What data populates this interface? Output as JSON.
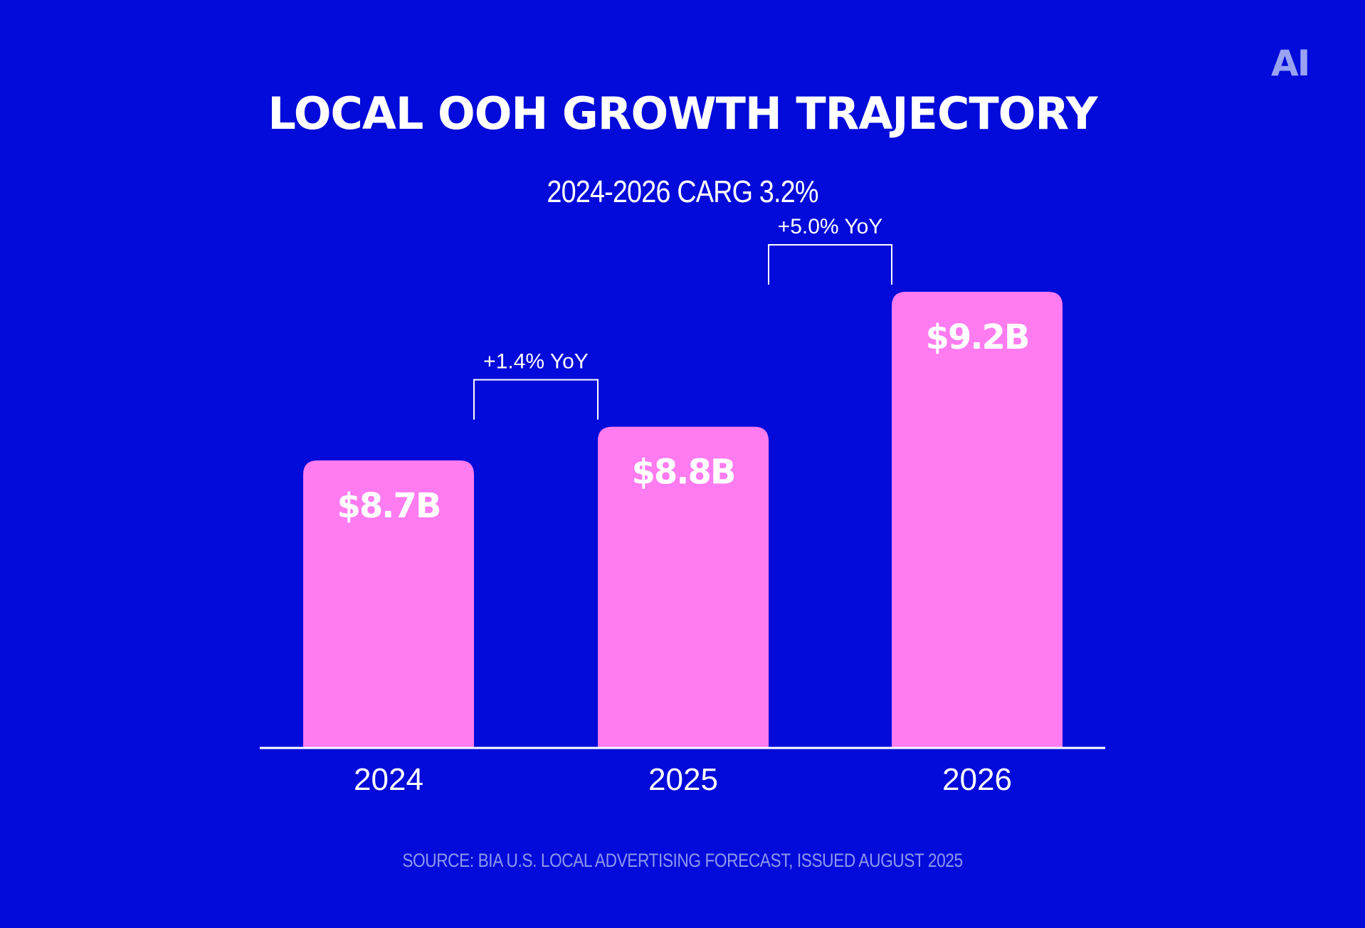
{
  "logo_text": "AI",
  "title": "LOCAL OOH GROWTH TRAJECTORY",
  "subtitle": "2024-2026 CARG 3.2%",
  "source": "SOURCE: BIA U.S. LOCAL ADVERTISING FORECAST, ISSUED AUGUST 2025",
  "colors": {
    "background": "#020BD9",
    "bar": "#FF7BF0",
    "text": "#FFFFFF",
    "muted": "#8F98EE",
    "logo": "#9AA3F2"
  },
  "chart_data": {
    "type": "bar",
    "categories": [
      "2024",
      "2025",
      "2026"
    ],
    "values": [
      8.7,
      8.8,
      9.2
    ],
    "value_labels": [
      "$8.7B",
      "$8.8B",
      "$9.2B"
    ],
    "title": "LOCAL OOH GROWTH TRAJECTORY",
    "subtitle": "2024-2026 CARG 3.2%",
    "xlabel": "",
    "ylabel": "",
    "annotations": [
      {
        "from": "2024",
        "to": "2025",
        "text": "+1.4% YoY"
      },
      {
        "from": "2025",
        "to": "2026",
        "text": "+5.0% YoY"
      }
    ],
    "grid": false,
    "legend": "none"
  }
}
